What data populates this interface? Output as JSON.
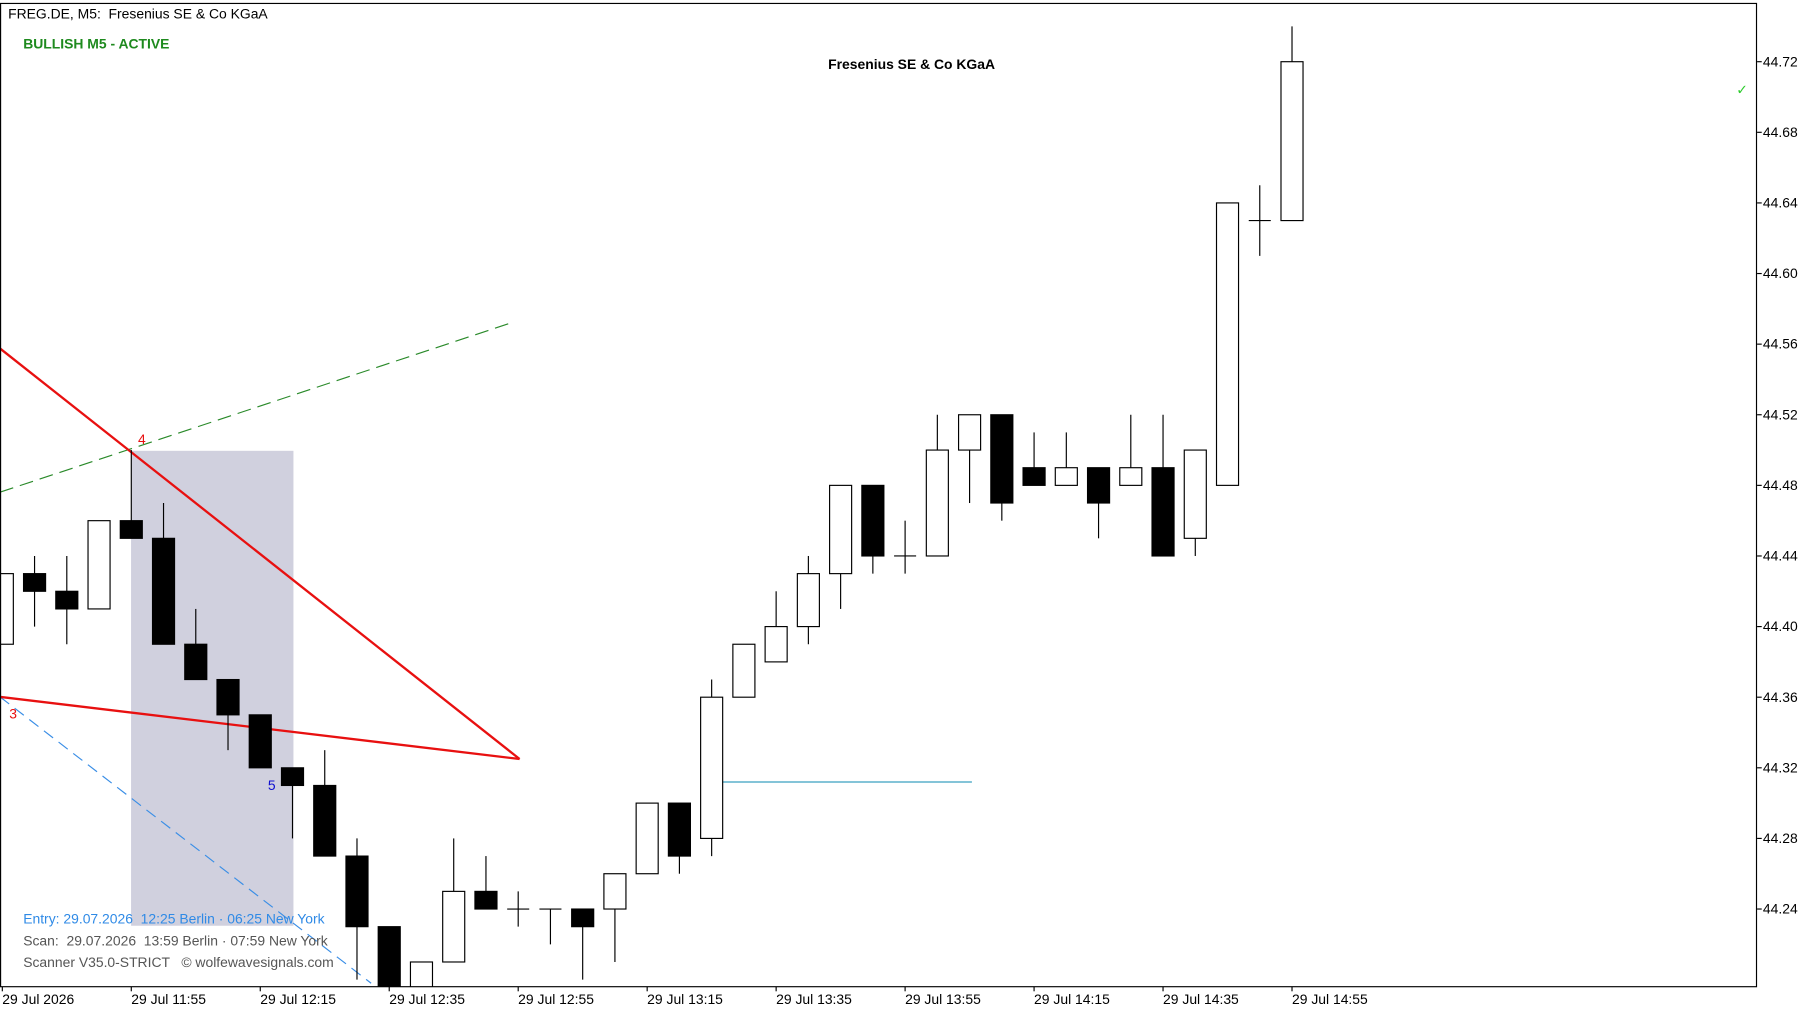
{
  "chart_data": {
    "type": "candlestick",
    "symbol_label": "FREG.DE, M5:  Fresenius SE & Co KGaA",
    "status": "BULLISH M5 - ACTIVE",
    "title": "Fresenius SE & Co KGaA",
    "info_lines": [
      "Entry: 29.07.2026  12:25 Berlin · 06:25 New York",
      "Scan:  29.07.2026  13:59 Berlin · 07:59 New York",
      "Scanner V35.0-STRICT   © wolfewavesignals.com"
    ],
    "annotations": [
      "3",
      "4",
      "5",
      "✓"
    ],
    "categories": [
      "29 Jul 2026",
      null,
      null,
      null,
      "29 Jul 11:55",
      null,
      null,
      null,
      "29 Jul 12:15",
      null,
      null,
      null,
      "29 Jul 12:35",
      null,
      null,
      null,
      "29 Jul 12:55",
      null,
      null,
      null,
      "29 Jul 13:15",
      null,
      null,
      null,
      "29 Jul 13:35",
      null,
      null,
      null,
      "29 Jul 13:55",
      null,
      null,
      null,
      "29 Jul 14:15",
      null,
      null,
      null,
      "29 Jul 14:35",
      null,
      null,
      null,
      "29 Jul 14:55"
    ],
    "open": [
      44.39,
      44.43,
      44.42,
      44.41,
      44.46,
      44.45,
      44.39,
      44.37,
      44.35,
      44.32,
      44.31,
      44.27,
      44.23,
      44.19,
      44.21,
      44.25,
      44.24,
      44.24,
      44.24,
      44.24,
      44.26,
      44.3,
      44.28,
      44.36,
      44.38,
      44.4,
      44.43,
      44.48,
      44.44,
      44.44,
      44.5,
      44.52,
      44.49,
      44.48,
      44.49,
      44.48,
      44.49,
      44.45,
      44.48,
      44.63,
      44.63
    ],
    "high": [
      44.43,
      44.44,
      44.44,
      44.46,
      44.5,
      44.47,
      44.41,
      44.37,
      44.35,
      44.32,
      44.33,
      44.28,
      44.23,
      44.21,
      44.28,
      44.27,
      44.25,
      44.24,
      44.24,
      44.26,
      44.3,
      44.3,
      44.37,
      44.39,
      44.42,
      44.44,
      44.48,
      44.48,
      44.46,
      44.52,
      44.52,
      44.52,
      44.51,
      44.51,
      44.49,
      44.52,
      44.52,
      44.5,
      44.64,
      44.65,
      44.74
    ],
    "low": [
      44.39,
      44.4,
      44.39,
      44.41,
      44.45,
      44.39,
      44.37,
      44.33,
      44.32,
      44.28,
      44.27,
      44.2,
      44.19,
      44.19,
      44.21,
      44.24,
      44.23,
      44.22,
      44.2,
      44.21,
      44.26,
      44.26,
      44.27,
      44.36,
      44.38,
      44.39,
      44.41,
      44.43,
      44.43,
      44.44,
      44.47,
      44.46,
      44.48,
      44.48,
      44.45,
      44.48,
      44.44,
      44.44,
      44.48,
      44.61,
      44.63
    ],
    "close": [
      44.43,
      44.42,
      44.41,
      44.46,
      44.45,
      44.39,
      44.37,
      44.35,
      44.32,
      44.31,
      44.27,
      44.23,
      44.19,
      44.21,
      44.25,
      44.24,
      44.24,
      44.24,
      44.23,
      44.26,
      44.3,
      44.27,
      44.36,
      44.39,
      44.4,
      44.43,
      44.48,
      44.44,
      44.44,
      44.5,
      44.52,
      44.47,
      44.48,
      44.49,
      44.47,
      44.49,
      44.44,
      44.5,
      44.64,
      44.63,
      44.72
    ],
    "up_color": "#ffffff",
    "down_color": "#000000",
    "outline_color": "#000000",
    "ylim": [
      44.196,
      44.753
    ],
    "yticks": [
      44.24,
      44.28,
      44.32,
      44.36,
      {
        "value": 44.4,
        "label": "44.40"
      },
      44.44,
      44.48,
      44.52,
      44.56,
      {
        "value": 44.6,
        "label": "44.60"
      },
      44.64,
      44.68,
      44.72
    ],
    "grid": false
  }
}
